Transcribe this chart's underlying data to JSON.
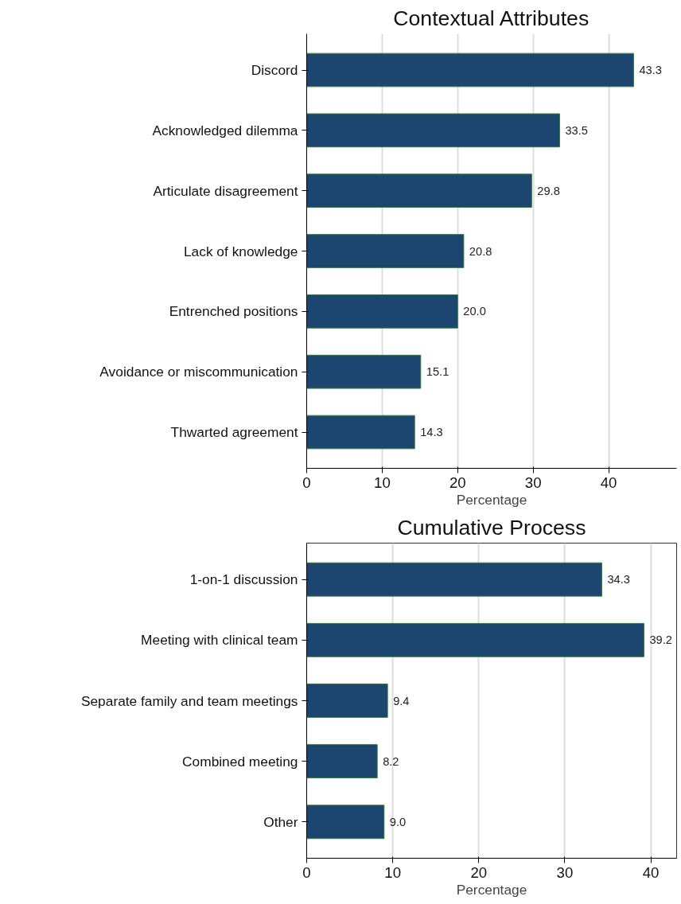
{
  "chart_data": [
    {
      "type": "bar",
      "orientation": "horizontal",
      "title": "Contextual Attributes",
      "xlabel": "Percentage",
      "categories": [
        "Discord",
        "Acknowledged dilemma",
        "Articulate disagreement",
        "Lack of knowledge",
        "Entrenched positions",
        "Avoidance or miscommunication",
        "Thwarted agreement"
      ],
      "values": [
        43.3,
        33.5,
        29.8,
        20.8,
        20.0,
        15.1,
        14.3
      ],
      "value_labels": [
        "43.3",
        "33.5",
        "29.8",
        "20.8",
        "20.0",
        "15.1",
        "14.3"
      ],
      "color": "#1c466f",
      "xlim": [
        0,
        49
      ],
      "xticks": [
        0,
        10,
        20,
        30,
        40
      ],
      "grid": "x"
    },
    {
      "type": "bar",
      "orientation": "horizontal",
      "title": "Cumulative Process",
      "xlabel": "Percentage",
      "categories": [
        "1-on-1 discussion",
        "Meeting with clinical team",
        "Separate family and team meetings",
        "Combined meeting",
        "Other"
      ],
      "values": [
        34.3,
        39.2,
        9.4,
        8.2,
        9.0
      ],
      "value_labels": [
        "34.3",
        "39.2",
        "9.4",
        "8.2",
        "9.0"
      ],
      "color": "#1c466f",
      "xlim": [
        0,
        43
      ],
      "xticks": [
        0,
        10,
        20,
        30,
        40
      ],
      "grid": "x"
    }
  ]
}
